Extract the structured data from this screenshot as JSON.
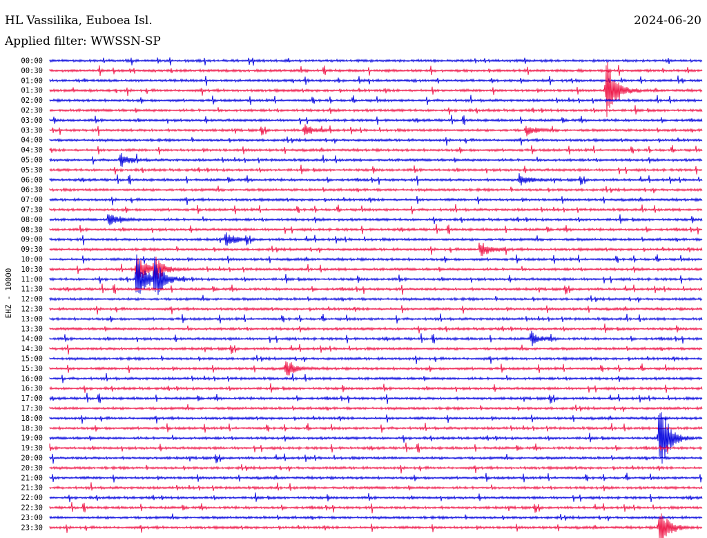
{
  "header": {
    "station": "HL Vassilika, Euboea Isl.",
    "date": "2024-06-20",
    "filter": "Applied filter: WWSSN-SP"
  },
  "chart_data": {
    "type": "line",
    "title": "HL Vassilika, Euboea Isl.",
    "ylabel": "EHZ - 10000",
    "colors": [
      "#0000dd",
      "#ee1144"
    ],
    "row_labels": [
      "00:00",
      "00:30",
      "01:00",
      "01:30",
      "02:00",
      "02:30",
      "03:00",
      "03:30",
      "04:00",
      "04:30",
      "05:00",
      "05:30",
      "06:00",
      "06:30",
      "07:00",
      "07:30",
      "08:00",
      "08:30",
      "09:00",
      "09:30",
      "10:00",
      "10:30",
      "11:00",
      "11:30",
      "12:00",
      "12:30",
      "13:00",
      "13:30",
      "14:00",
      "14:30",
      "15:00",
      "15:30",
      "16:00",
      "16:30",
      "17:00",
      "17:30",
      "18:00",
      "18:30",
      "19:00",
      "19:30",
      "20:00",
      "20:30",
      "21:00",
      "21:30",
      "22:00",
      "22:30",
      "23:00",
      "23:30"
    ],
    "events": [
      {
        "row": 3,
        "pos": 0.854,
        "amp": 48
      },
      {
        "row": 7,
        "pos": 0.39,
        "amp": 9
      },
      {
        "row": 7,
        "pos": 0.73,
        "amp": 8
      },
      {
        "row": 10,
        "pos": 0.108,
        "amp": 10
      },
      {
        "row": 12,
        "pos": 0.72,
        "amp": 9
      },
      {
        "row": 16,
        "pos": 0.09,
        "amp": 10
      },
      {
        "row": 18,
        "pos": 0.27,
        "amp": 10
      },
      {
        "row": 19,
        "pos": 0.66,
        "amp": 13
      },
      {
        "row": 21,
        "pos": 0.133,
        "amp": 24
      },
      {
        "row": 21,
        "pos": 0.16,
        "amp": 20
      },
      {
        "row": 22,
        "pos": 0.133,
        "amp": 38
      },
      {
        "row": 22,
        "pos": 0.16,
        "amp": 30
      },
      {
        "row": 28,
        "pos": 0.738,
        "amp": 9
      },
      {
        "row": 31,
        "pos": 0.362,
        "amp": 12
      },
      {
        "row": 38,
        "pos": 0.935,
        "amp": 60
      },
      {
        "row": 47,
        "pos": 0.935,
        "amp": 30
      }
    ]
  }
}
